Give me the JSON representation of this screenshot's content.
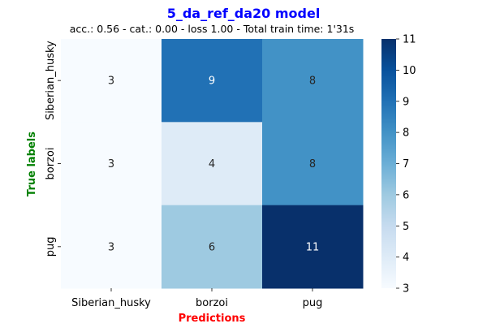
{
  "chart_data": {
    "type": "heatmap",
    "title": "5_da_ref_da20 model",
    "subtitle": "acc.: 0.56 - cat.: 0.00 - loss 1.00 - Total train time: 1'31s",
    "xlabel": "Predictions",
    "ylabel": "True labels",
    "x_categories": [
      "Siberian_husky",
      "borzoi",
      "pug"
    ],
    "y_categories": [
      "Siberian_husky",
      "borzoi",
      "pug"
    ],
    "values": [
      [
        3,
        9,
        8
      ],
      [
        3,
        4,
        8
      ],
      [
        3,
        6,
        11
      ]
    ],
    "colorbar": {
      "min": 3,
      "max": 11,
      "ticks": [
        3,
        4,
        5,
        6,
        7,
        8,
        9,
        10,
        11
      ]
    },
    "colormap": "Blues"
  },
  "colors": {
    "title": "#0000ff",
    "xlabel": "#ff0000",
    "ylabel": "#008000"
  }
}
